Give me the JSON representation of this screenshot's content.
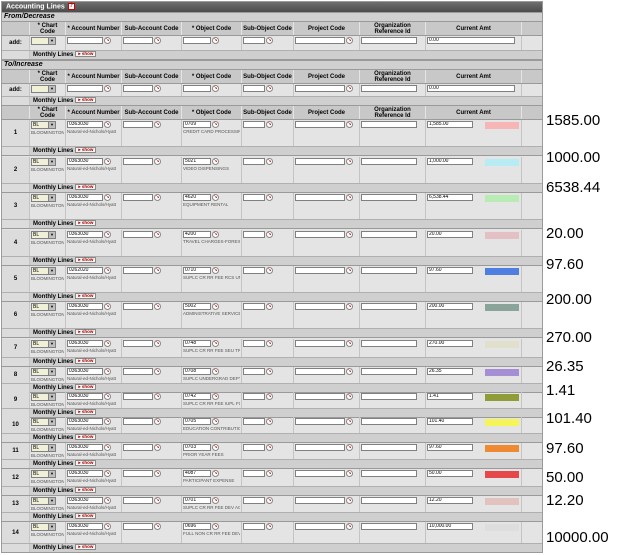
{
  "panel": {
    "title": "Accounting Lines",
    "from_section": "From/Decrease",
    "to_section": "To/Increase",
    "add_label": "add:",
    "monthly_label": "Monthly Lines",
    "show_label": "show",
    "campus_text": "BLOOMINGTON",
    "account_text": "Natural-ed-Nichols/Hyatt"
  },
  "columns": [
    "* Chart Code",
    "* Account Number",
    "Sub-Account Code",
    "* Object Code",
    "Sub-Object Code",
    "Project Code",
    "Organization Reference Id",
    "Current Amt"
  ],
  "from_add": {
    "amount": "0.00"
  },
  "to_add": {
    "amount": "0.00"
  },
  "lines": [
    {
      "num": "1",
      "chart": "BL",
      "account": "0363030",
      "object": "0709",
      "object_desc": "CREDIT CARD PROCESSING FEE",
      "amount": "1,585.00",
      "color": "#f7b6b6",
      "external": "1585.00"
    },
    {
      "num": "2",
      "chart": "BL",
      "account": "0363030",
      "object": "5021",
      "object_desc": "VIDEO DISPENSINGS",
      "amount": "1,000.00",
      "color": "#b8ecf5",
      "external": "1000.00"
    },
    {
      "num": "3",
      "chart": "BL",
      "account": "0363030",
      "object": "4620",
      "object_desc": "EQUIPMENT RENTAL",
      "amount": "6,538.44",
      "color": "#b9ecb4",
      "external": "6538.44"
    },
    {
      "num": "4",
      "chart": "BL",
      "account": "0363030",
      "object": "4200",
      "object_desc": "TRAVEL CHARGES-FOREIGN",
      "amount": "20.00",
      "color": "#e3c0c4",
      "external": "20.00"
    },
    {
      "num": "5",
      "chart": "BL",
      "account": "0262020",
      "object": "0710",
      "object_desc": "SUPLC CR RR FEE RCS UNDERGRAD",
      "amount": "97.60",
      "color": "#4e7fe0",
      "external": "97.60"
    },
    {
      "num": "6",
      "chart": "BL",
      "account": "0363030",
      "object": "5002",
      "object_desc": "ADMINISTRATIVE SERVICE CHARGE",
      "amount": "200.00",
      "color": "#8aa49a",
      "external": "200.00"
    },
    {
      "num": "7",
      "chart": "BL",
      "account": "0363030",
      "object": "0748",
      "object_desc": "SUPLC CR RR FEE SEU TRANSFER",
      "amount": "270.00",
      "color": "#e0e0cc",
      "external": "270.00"
    },
    {
      "num": "8",
      "chart": "BL",
      "account": "0363030",
      "object": "0708",
      "object_desc": "SUPLC UNDERGRAD DEPTS FEES",
      "amount": "26.35",
      "color": "#a48fd4",
      "external": "26.35"
    },
    {
      "num": "9",
      "chart": "BL",
      "account": "0363030",
      "object": "0742",
      "object_desc": "SUPLC CR RR FEE IUPL FOREIGN",
      "amount": "1.41",
      "color": "#8f9c38",
      "external": "1.41"
    },
    {
      "num": "10",
      "chart": "BL",
      "account": "0363030",
      "object": "0705",
      "object_desc": "EDUCATION CONTRIBUTIONS",
      "amount": "101.40",
      "color": "#f5f55a",
      "external": "101.40"
    },
    {
      "num": "11",
      "chart": "BL",
      "account": "0363030",
      "object": "0703",
      "object_desc": "PRIOR YEAR FEES",
      "amount": "97.60",
      "color": "#ee8a33",
      "external": "97.60"
    },
    {
      "num": "12",
      "chart": "BL",
      "account": "0363030",
      "object": "4087",
      "object_desc": "PARTICIPANT EXPENSE",
      "amount": "50.00",
      "color": "#e54848",
      "external": "50.00"
    },
    {
      "num": "13",
      "chart": "BL",
      "account": "0363030",
      "object": "0701",
      "object_desc": "SUPLC CR RR FEE DEV ACCT-BASE",
      "amount": "12.20",
      "color": "#e2c2bf",
      "external": "12.20"
    },
    {
      "num": "14",
      "chart": "BL",
      "account": "0363030",
      "object": "0696",
      "object_desc": "FULL NON CR RR FEE DEV ACT",
      "amount": "10,000.00",
      "color": "#dedede",
      "external": "10000.00"
    }
  ]
}
